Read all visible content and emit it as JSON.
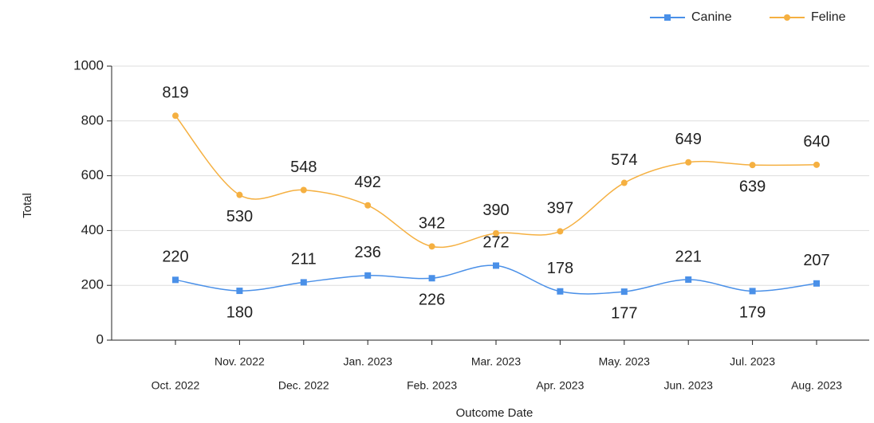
{
  "chart_data": {
    "type": "line",
    "x_label": "Outcome Date",
    "y_label": "Total",
    "categories": [
      "Oct. 2022",
      "Nov. 2022",
      "Dec. 2022",
      "Jan. 2023",
      "Feb. 2023",
      "Mar. 2023",
      "Apr. 2023",
      "May. 2023",
      "Jun. 2023",
      "Jul. 2023",
      "Aug. 2023"
    ],
    "series": [
      {
        "name": "Canine",
        "color": "#4a90e8",
        "values": [
          220,
          180,
          211,
          236,
          226,
          272,
          178,
          177,
          221,
          179,
          207
        ]
      },
      {
        "name": "Feline",
        "color": "#f5b041",
        "values": [
          819,
          530,
          548,
          492,
          342,
          390,
          397,
          574,
          649,
          639,
          640
        ]
      }
    ],
    "ylim": [
      0,
      1000
    ],
    "yticks": [
      0,
      200,
      400,
      600,
      800,
      1000
    ],
    "grid": true,
    "legend": "top-right"
  }
}
